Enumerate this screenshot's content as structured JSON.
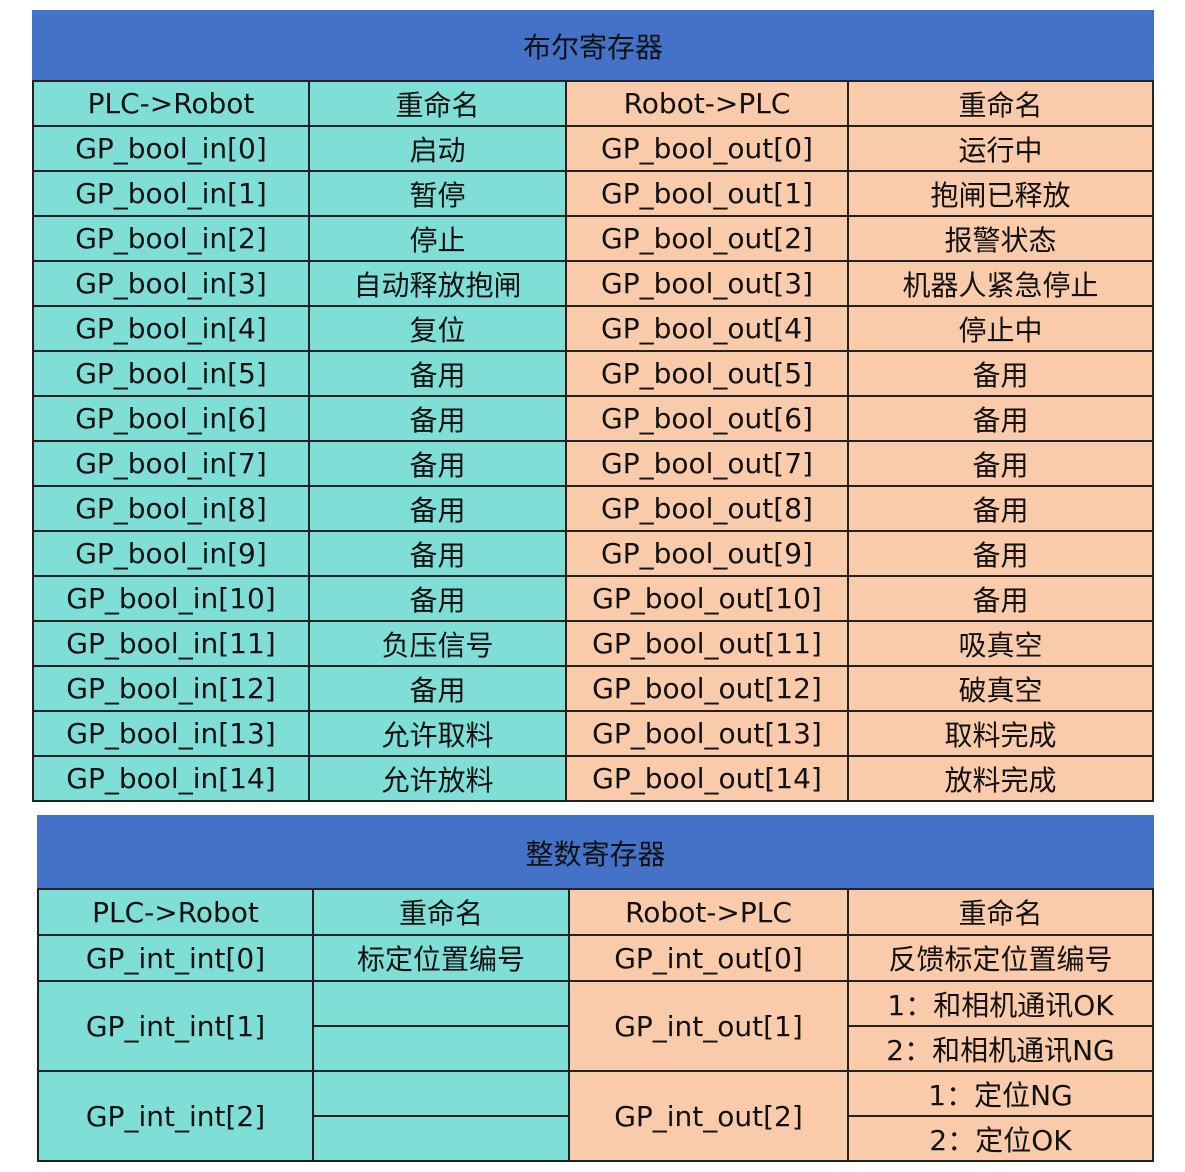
{
  "colors": {
    "title_bg": "#4472C8",
    "left_bg": "#7FDED6",
    "right_bg": "#F9CBAB"
  },
  "bool_table": {
    "title": "布尔寄存器",
    "headers": [
      "PLC->Robot",
      "重命名",
      "Robot->PLC",
      "重命名"
    ],
    "rows": [
      [
        "GP_bool_in[0]",
        "启动",
        "GP_bool_out[0]",
        "运行中"
      ],
      [
        "GP_bool_in[1]",
        "暂停",
        "GP_bool_out[1]",
        "抱闸已释放"
      ],
      [
        "GP_bool_in[2]",
        "停止",
        "GP_bool_out[2]",
        "报警状态"
      ],
      [
        "GP_bool_in[3]",
        "自动释放抱闸",
        "GP_bool_out[3]",
        "机器人紧急停止"
      ],
      [
        "GP_bool_in[4]",
        "复位",
        "GP_bool_out[4]",
        "停止中"
      ],
      [
        "GP_bool_in[5]",
        "备用",
        "GP_bool_out[5]",
        "备用"
      ],
      [
        "GP_bool_in[6]",
        "备用",
        "GP_bool_out[6]",
        "备用"
      ],
      [
        "GP_bool_in[7]",
        "备用",
        "GP_bool_out[7]",
        "备用"
      ],
      [
        "GP_bool_in[8]",
        "备用",
        "GP_bool_out[8]",
        "备用"
      ],
      [
        "GP_bool_in[9]",
        "备用",
        "GP_bool_out[9]",
        "备用"
      ],
      [
        "GP_bool_in[10]",
        "备用",
        "GP_bool_out[10]",
        "备用"
      ],
      [
        "GP_bool_in[11]",
        "负压信号",
        "GP_bool_out[11]",
        "吸真空"
      ],
      [
        "GP_bool_in[12]",
        "备用",
        "GP_bool_out[12]",
        "破真空"
      ],
      [
        "GP_bool_in[13]",
        "允许取料",
        "GP_bool_out[13]",
        "取料完成"
      ],
      [
        "GP_bool_in[14]",
        "允许放料",
        "GP_bool_out[14]",
        "放料完成"
      ]
    ]
  },
  "int_table": {
    "title": "整数寄存器",
    "headers": [
      "PLC->Robot",
      "重命名",
      "Robot->PLC",
      "重命名"
    ],
    "rows": [
      {
        "in": "GP_int_int[0]",
        "in_names": [
          "标定位置编号"
        ],
        "out": "GP_int_out[0]",
        "out_names": [
          "反馈标定位置编号"
        ]
      },
      {
        "in": "GP_int_int[1]",
        "in_names": [
          "",
          ""
        ],
        "out": "GP_int_out[1]",
        "out_names": [
          "1：和相机通讯OK",
          "2：和相机通讯NG"
        ]
      },
      {
        "in": "GP_int_int[2]",
        "in_names": [
          "",
          ""
        ],
        "out": "GP_int_out[2]",
        "out_names": [
          "1：定位NG",
          "2：定位OK"
        ]
      }
    ]
  }
}
